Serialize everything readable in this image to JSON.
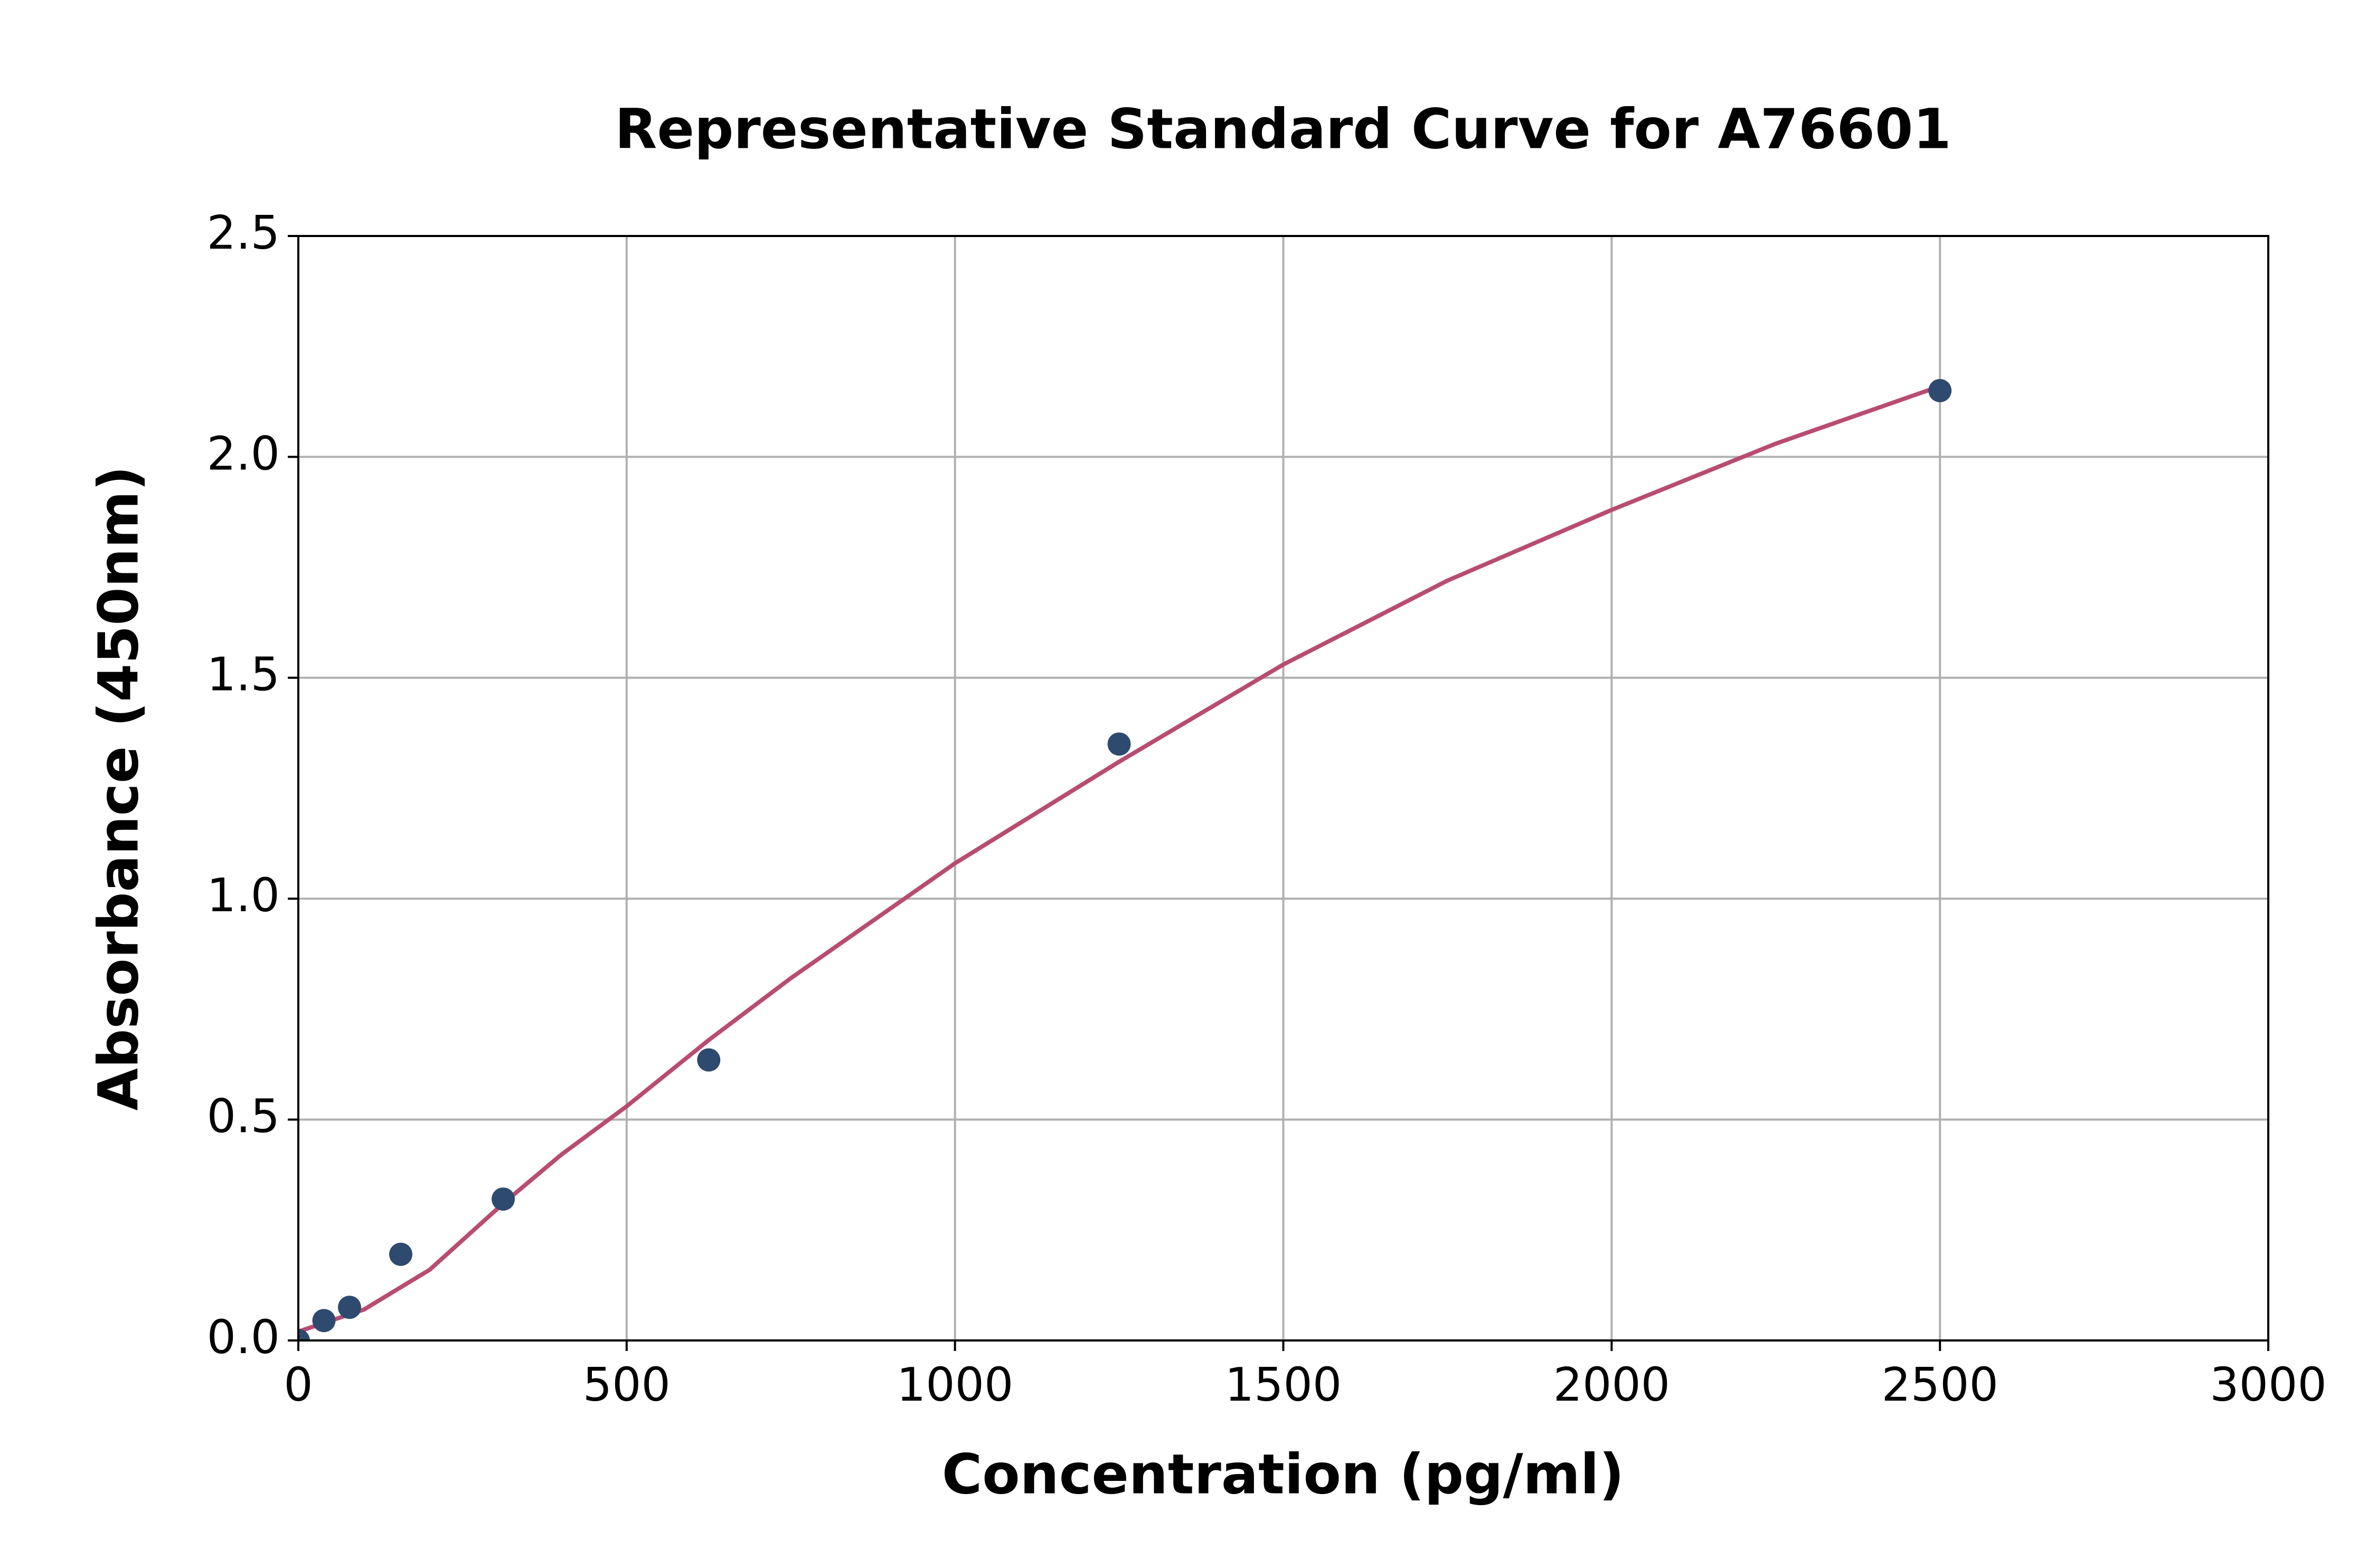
{
  "chart_data": {
    "type": "scatter",
    "title": "Representative Standard Curve for A76601",
    "x_label": "Concentration (pg/ml)",
    "y_label": "Absorbance (450nm)",
    "xlim": [
      0,
      3000
    ],
    "ylim": [
      0,
      2.5
    ],
    "xticks": [
      0,
      500,
      1000,
      1500,
      2000,
      2500,
      3000
    ],
    "yticks": [
      {
        "value": 0,
        "label": "0.0"
      },
      0.5,
      {
        "value": 1,
        "label": "1.0"
      },
      1.5,
      {
        "value": 2,
        "label": "2.0"
      },
      2.5
    ],
    "grid": true,
    "series": [
      {
        "style": "line",
        "color": "#b84c72",
        "x": [
          0,
          100,
          200,
          312,
          400,
          500,
          625,
          750,
          1000,
          1250,
          1500,
          1750,
          2000,
          2250,
          2500
        ],
        "values": [
          0.02,
          0.07,
          0.16,
          0.31,
          0.42,
          0.53,
          0.68,
          0.82,
          1.08,
          1.31,
          1.53,
          1.72,
          1.88,
          2.03,
          2.16
        ]
      },
      {
        "style": "markers",
        "color": "#2e4a6e",
        "x": [
          0,
          39,
          78,
          156,
          312,
          625,
          1250,
          2500
        ],
        "values": [
          0.0,
          0.045,
          0.075,
          0.195,
          0.32,
          0.635,
          1.35,
          2.15
        ]
      }
    ]
  }
}
